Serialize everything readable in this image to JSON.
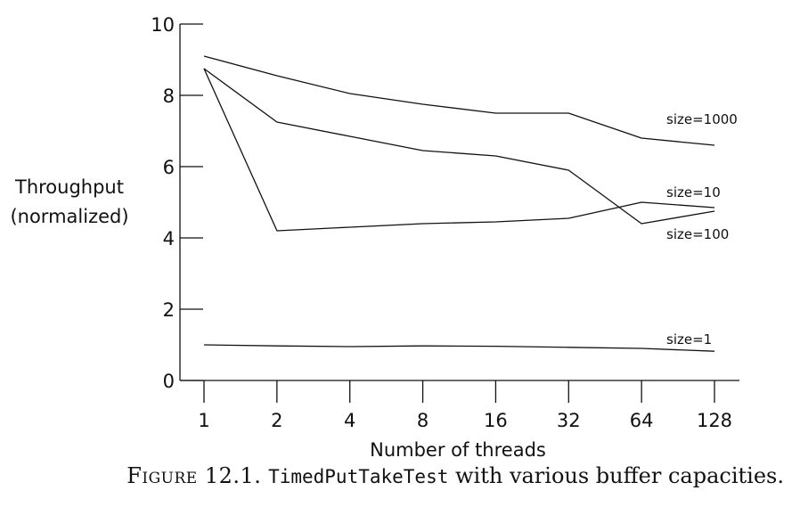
{
  "chart_data": {
    "type": "line",
    "x": [
      "1",
      "2",
      "4",
      "8",
      "16",
      "32",
      "64",
      "128"
    ],
    "xlabel": "Number of threads",
    "ylabel": [
      "Throughput",
      "(normalized)"
    ],
    "ylim": [
      0,
      10
    ],
    "yticks": [
      "0",
      "2",
      "4",
      "6",
      "8",
      "10"
    ],
    "grid": false,
    "series": [
      {
        "name": "size=1000",
        "values": [
          9.1,
          8.55,
          8.05,
          7.75,
          7.5,
          7.5,
          6.8,
          6.6
        ]
      },
      {
        "name": "size=100",
        "values": [
          8.75,
          7.25,
          6.85,
          6.45,
          6.3,
          5.9,
          4.4,
          4.75
        ]
      },
      {
        "name": "size=10",
        "values": [
          8.75,
          4.2,
          4.3,
          4.4,
          4.45,
          4.55,
          5.0,
          4.85
        ]
      },
      {
        "name": "size=1",
        "values": [
          1.0,
          0.97,
          0.95,
          0.97,
          0.96,
          0.93,
          0.9,
          0.82
        ]
      }
    ]
  },
  "caption": {
    "figure_label": "Figure 12.1.",
    "code": "TimedPutTakeTest",
    "rest": " with various buffer capacities."
  }
}
